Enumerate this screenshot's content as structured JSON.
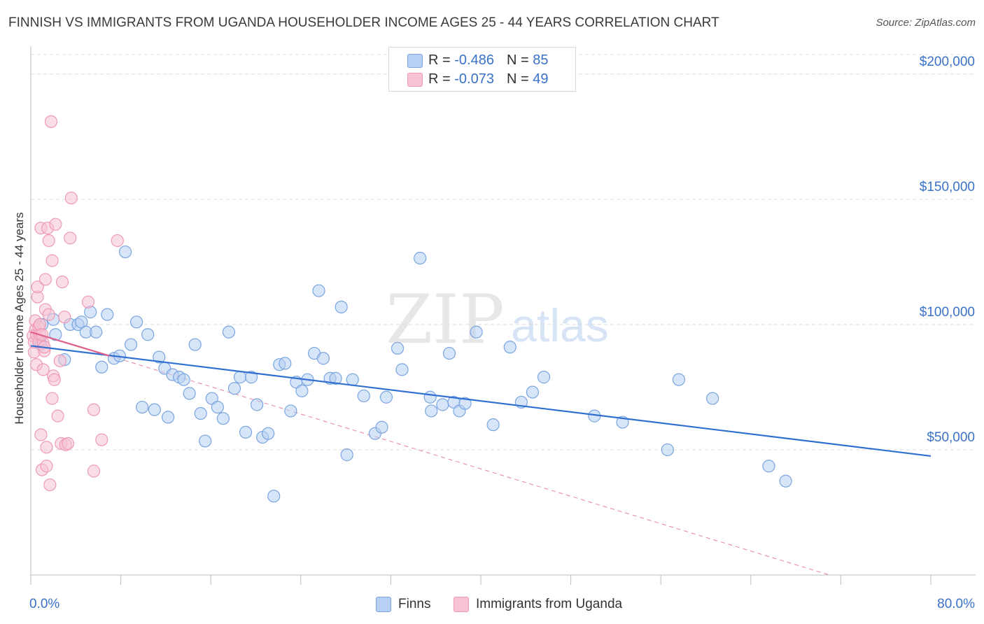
{
  "header": {
    "title": "FINNISH VS IMMIGRANTS FROM UGANDA HOUSEHOLDER INCOME AGES 25 - 44 YEARS CORRELATION CHART",
    "source": "Source: ZipAtlas.com"
  },
  "watermark": {
    "zip": "ZIP",
    "atlas": "atlas"
  },
  "colors": {
    "finns_fill": "#b7d0f3",
    "finns_stroke": "#7aa5e0",
    "finns_line": "#2f6fcf",
    "uganda_fill": "#f6c3d4",
    "uganda_stroke": "#ee9ab6",
    "uganda_line": "#e0608c",
    "tick_label": "#3a72c8",
    "grid": "#dcdcdc"
  },
  "legend_top": {
    "rows": [
      {
        "r_label": "R = ",
        "r_value": "-0.486",
        "n_label": "N = ",
        "n_value": "85"
      },
      {
        "r_label": "R = ",
        "r_value": "-0.073",
        "n_label": "N = ",
        "n_value": "49"
      }
    ]
  },
  "legend_bottom": [
    "Finns",
    "Immigrants from Uganda"
  ],
  "chart_data": {
    "type": "scatter",
    "title": "FINNISH VS IMMIGRANTS FROM UGANDA HOUSEHOLDER INCOME AGES 25 - 44 YEARS CORRELATION CHART",
    "xlabel": "",
    "ylabel": "Householder Income Ages 25 - 44 years",
    "xlim": [
      0,
      80
    ],
    "ylim": [
      0,
      210000
    ],
    "x_tick_labels": [
      "0.0%",
      "80.0%"
    ],
    "y_ticks": [
      50000,
      100000,
      150000,
      200000
    ],
    "y_tick_labels": [
      "$50,000",
      "$100,000",
      "$150,000",
      "$200,000"
    ],
    "grid": true,
    "legend_position": "top-center",
    "series": [
      {
        "name": "Finns",
        "r": -0.486,
        "n": 85,
        "trend": {
          "x": [
            0,
            80
          ],
          "y": [
            91500,
            47500
          ],
          "style": "solid"
        },
        "points": [
          [
            0.8,
            93000
          ],
          [
            0.9,
            92000
          ],
          [
            1.0,
            100000
          ],
          [
            2.0,
            102000
          ],
          [
            2.2,
            96000
          ],
          [
            3.0,
            86000
          ],
          [
            3.5,
            100000
          ],
          [
            4.2,
            100000
          ],
          [
            4.5,
            101000
          ],
          [
            4.9,
            97000
          ],
          [
            5.3,
            105000
          ],
          [
            5.8,
            97000
          ],
          [
            6.3,
            83000
          ],
          [
            6.8,
            104000
          ],
          [
            7.4,
            86500
          ],
          [
            7.9,
            87500
          ],
          [
            8.4,
            129000
          ],
          [
            8.9,
            92000
          ],
          [
            9.4,
            101000
          ],
          [
            9.9,
            67000
          ],
          [
            10.4,
            96000
          ],
          [
            11.0,
            66000
          ],
          [
            11.4,
            87000
          ],
          [
            11.9,
            82500
          ],
          [
            12.2,
            63000
          ],
          [
            12.6,
            80000
          ],
          [
            13.2,
            79000
          ],
          [
            13.6,
            78000
          ],
          [
            14.1,
            72500
          ],
          [
            14.6,
            92000
          ],
          [
            15.1,
            64500
          ],
          [
            15.5,
            53500
          ],
          [
            16.1,
            70500
          ],
          [
            16.6,
            67000
          ],
          [
            17.1,
            62500
          ],
          [
            17.6,
            97000
          ],
          [
            18.1,
            74500
          ],
          [
            18.6,
            79000
          ],
          [
            19.1,
            57000
          ],
          [
            19.6,
            79000
          ],
          [
            20.1,
            68000
          ],
          [
            20.6,
            55000
          ],
          [
            21.1,
            56500
          ],
          [
            21.6,
            31500
          ],
          [
            22.1,
            84000
          ],
          [
            22.6,
            84500
          ],
          [
            23.1,
            65500
          ],
          [
            23.6,
            77000
          ],
          [
            24.1,
            73500
          ],
          [
            24.6,
            78000
          ],
          [
            25.2,
            88500
          ],
          [
            25.6,
            113500
          ],
          [
            26.0,
            86500
          ],
          [
            26.6,
            78500
          ],
          [
            27.1,
            78500
          ],
          [
            27.6,
            107000
          ],
          [
            28.1,
            48000
          ],
          [
            28.6,
            78000
          ],
          [
            29.6,
            71500
          ],
          [
            30.6,
            56500
          ],
          [
            31.2,
            59000
          ],
          [
            31.6,
            71000
          ],
          [
            32.6,
            90500
          ],
          [
            33.0,
            82000
          ],
          [
            34.6,
            126500
          ],
          [
            35.5,
            71000
          ],
          [
            35.6,
            65500
          ],
          [
            36.6,
            68000
          ],
          [
            37.2,
            88500
          ],
          [
            37.6,
            69000
          ],
          [
            38.1,
            65500
          ],
          [
            38.6,
            68500
          ],
          [
            39.6,
            97000
          ],
          [
            41.1,
            60000
          ],
          [
            42.6,
            91000
          ],
          [
            43.6,
            69000
          ],
          [
            44.6,
            73000
          ],
          [
            45.6,
            79000
          ],
          [
            50.1,
            63500
          ],
          [
            52.6,
            61000
          ],
          [
            56.6,
            50000
          ],
          [
            57.6,
            78000
          ],
          [
            60.6,
            70500
          ],
          [
            65.6,
            43500
          ],
          [
            67.1,
            37500
          ]
        ]
      },
      {
        "name": "Immigrants from Uganda",
        "r": -0.073,
        "n": 49,
        "trend": {
          "x": [
            0,
            7
          ],
          "y": [
            97000,
            87500
          ],
          "style": "solid",
          "extended": {
            "x": [
              7,
              71
            ],
            "y": [
              87500,
              0
            ],
            "style": "dashed"
          }
        },
        "points": [
          [
            0.2,
            95500
          ],
          [
            0.3,
            89000
          ],
          [
            0.3,
            93000
          ],
          [
            0.4,
            98000
          ],
          [
            0.4,
            101500
          ],
          [
            0.5,
            96000
          ],
          [
            0.5,
            84000
          ],
          [
            0.6,
            111000
          ],
          [
            0.6,
            115000
          ],
          [
            0.7,
            99000
          ],
          [
            0.7,
            93000
          ],
          [
            0.8,
            96000
          ],
          [
            0.9,
            138500
          ],
          [
            0.9,
            56000
          ],
          [
            1.0,
            42000
          ],
          [
            1.1,
            82000
          ],
          [
            1.1,
            92500
          ],
          [
            1.2,
            89500
          ],
          [
            1.3,
            106000
          ],
          [
            1.3,
            118000
          ],
          [
            1.4,
            51000
          ],
          [
            1.4,
            43500
          ],
          [
            1.5,
            138500
          ],
          [
            1.6,
            133500
          ],
          [
            1.6,
            104000
          ],
          [
            1.7,
            36000
          ],
          [
            1.8,
            181000
          ],
          [
            1.9,
            125500
          ],
          [
            1.9,
            70500
          ],
          [
            2.0,
            79500
          ],
          [
            2.1,
            78000
          ],
          [
            2.2,
            140000
          ],
          [
            2.4,
            63500
          ],
          [
            2.6,
            85500
          ],
          [
            2.7,
            52500
          ],
          [
            2.8,
            117000
          ],
          [
            3.0,
            103000
          ],
          [
            3.1,
            52000
          ],
          [
            3.3,
            52500
          ],
          [
            3.5,
            134500
          ],
          [
            3.6,
            150500
          ],
          [
            5.1,
            109000
          ],
          [
            5.6,
            66000
          ],
          [
            5.6,
            41500
          ],
          [
            6.3,
            54000
          ],
          [
            7.7,
            133500
          ],
          [
            0.8,
            100000
          ],
          [
            1.0,
            96000
          ],
          [
            1.2,
            91000
          ]
        ]
      }
    ]
  }
}
